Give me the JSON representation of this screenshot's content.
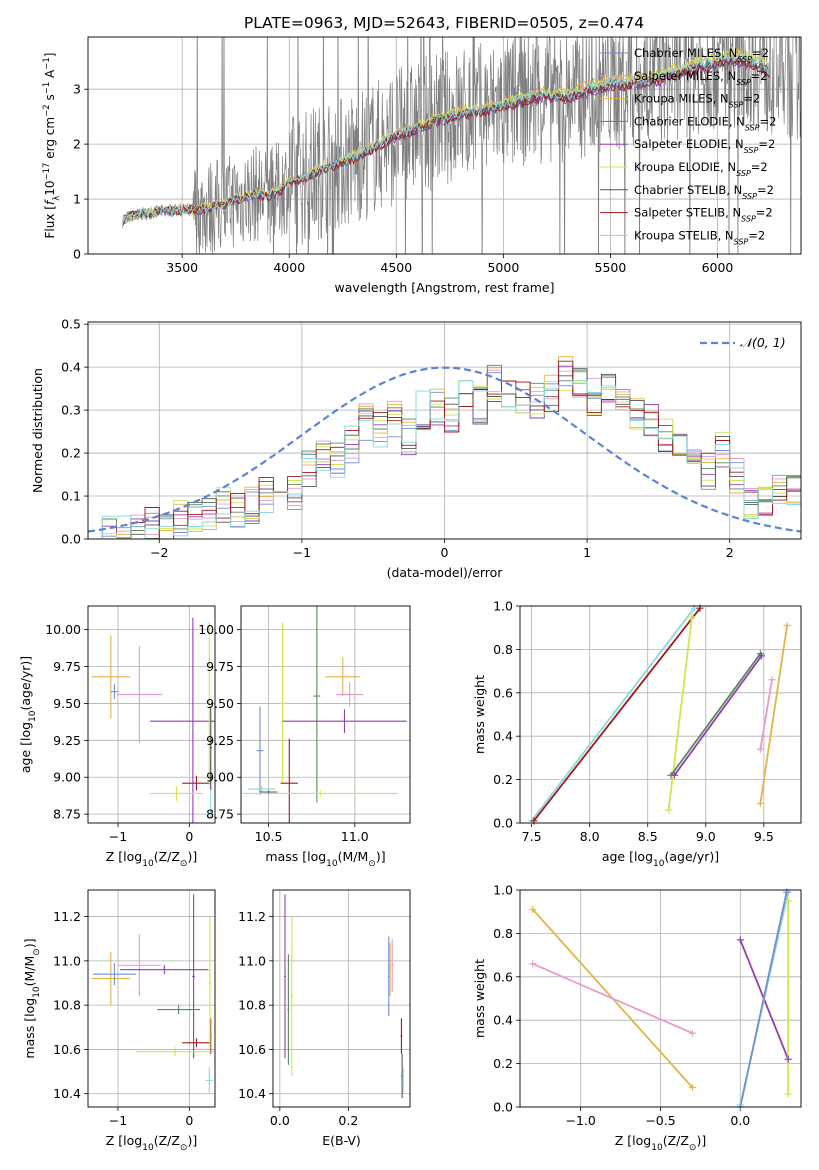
{
  "figure_title": "PLATE=0963, MJD=52643, FIBERID=0505, z=0.474",
  "colors": {
    "Chabrier MILES": "#6f8fd4",
    "Salpeter MILES": "#e79bc9",
    "Kroupa MILES": "#e3b448",
    "Chabrier ELODIE": "#5a8a5a",
    "Salpeter ELODIE": "#8f3fb0",
    "Kroupa ELODIE": "#cfe552",
    "Chabrier STELIB": "#555555",
    "Salpeter STELIB": "#a11a1a",
    "Kroupa STELIB": "#88d8e0",
    "data": "#7f7f7f",
    "orange": "#e0823a",
    "normal": "#5b84d6"
  },
  "legend_entries": [
    {
      "model": "Chabrier MILES",
      "suffix": "=2"
    },
    {
      "model": "Salpeter MILES",
      "suffix": "=2"
    },
    {
      "model": "Kroupa MILES",
      "suffix": "=2"
    },
    {
      "model": "Chabrier ELODIE",
      "suffix": "=2"
    },
    {
      "model": "Salpeter ELODIE",
      "suffix": "=2"
    },
    {
      "model": "Kroupa ELODIE",
      "suffix": "=2"
    },
    {
      "model": "Chabrier STELIB",
      "suffix": "=2"
    },
    {
      "model": "Salpeter STELIB",
      "suffix": "=2"
    },
    {
      "model": "Kroupa STELIB",
      "suffix": "=2"
    }
  ],
  "legend_nssp_main": "N",
  "legend_nssp_sub": "SSP",
  "chart_data": [
    {
      "id": "spectrum",
      "type": "line",
      "title": "PLATE=0963, MJD=52643, FIBERID=0505, z=0.474",
      "xlabel": "wavelength [Angstrom, rest frame]",
      "ylabel": "Flux [f_λ 10^-17 erg cm^-2 s^-1 A^-1]",
      "xlim": [
        3060,
        6390
      ],
      "ylim": [
        0,
        3.95
      ],
      "xticks": [
        3500,
        4000,
        4500,
        5000,
        5500,
        6000
      ],
      "yticks": [
        0,
        1,
        2,
        3
      ],
      "grid": true,
      "legend": "top-right",
      "model_x": [
        3220,
        3250,
        3300,
        3400,
        3500,
        3600,
        3700,
        3750,
        3800,
        3850,
        3900,
        3950,
        4000,
        4100,
        4200,
        4300,
        4400,
        4500,
        4600,
        4700,
        4800,
        4900,
        5000,
        5100,
        5200,
        5300,
        5400,
        5500,
        5600,
        5700,
        5800,
        5900,
        6000,
        6100,
        6200,
        6250
      ],
      "model_y": [
        0.6,
        0.68,
        0.72,
        0.78,
        0.8,
        0.82,
        0.9,
        1.0,
        1.05,
        1.1,
        1.05,
        1.15,
        1.3,
        1.45,
        1.6,
        1.75,
        1.95,
        2.15,
        2.3,
        2.45,
        2.55,
        2.62,
        2.7,
        2.8,
        2.9,
        2.85,
        3.0,
        3.1,
        3.1,
        3.15,
        3.3,
        3.4,
        3.5,
        3.55,
        3.45,
        3.3
      ]
    },
    {
      "id": "residuals",
      "type": "step",
      "xlabel": "(data-model)/error",
      "ylabel": "Normed distribution",
      "xlim": [
        -2.5,
        2.5
      ],
      "ylim": [
        0,
        0.505
      ],
      "xticks": [
        -2,
        -1,
        0,
        1,
        2
      ],
      "yticks": [
        0.0,
        0.1,
        0.2,
        0.3,
        0.4,
        0.5
      ],
      "grid": true,
      "legend": "top-right",
      "normal_label": "𝒩(0, 1)",
      "bins": [
        -2.5,
        -2.4,
        -2.3,
        -2.2,
        -2.1,
        -2.0,
        -1.9,
        -1.8,
        -1.7,
        -1.6,
        -1.5,
        -1.4,
        -1.3,
        -1.2,
        -1.1,
        -1.0,
        -0.9,
        -0.8,
        -0.7,
        -0.6,
        -0.5,
        -0.4,
        -0.3,
        -0.2,
        -0.1,
        0.0,
        0.1,
        0.2,
        0.3,
        0.4,
        0.5,
        0.6,
        0.7,
        0.8,
        0.9,
        1.0,
        1.1,
        1.2,
        1.3,
        1.4,
        1.5,
        1.6,
        1.7,
        1.8,
        1.9,
        2.0,
        2.1,
        2.2,
        2.3,
        2.4,
        2.5
      ],
      "hist_values": [
        0.0,
        0.01,
        0.01,
        0.02,
        0.03,
        0.03,
        0.05,
        0.06,
        0.05,
        0.08,
        0.07,
        0.08,
        0.1,
        0.12,
        0.11,
        0.16,
        0.2,
        0.18,
        0.22,
        0.27,
        0.25,
        0.28,
        0.24,
        0.3,
        0.31,
        0.29,
        0.33,
        0.31,
        0.36,
        0.35,
        0.33,
        0.32,
        0.34,
        0.38,
        0.36,
        0.33,
        0.35,
        0.31,
        0.3,
        0.27,
        0.24,
        0.22,
        0.18,
        0.16,
        0.21,
        0.15,
        0.09,
        0.1,
        0.12,
        0.11
      ]
    },
    {
      "id": "age_vs_Z",
      "type": "errorbar",
      "xlabel_parts": [
        "Z [log",
        "10",
        "(Z/Z",
        "⊙",
        ")]"
      ],
      "ylabel_parts": [
        "age  [log",
        "10",
        "(age/yr)]"
      ],
      "xlim": [
        -1.42,
        0.36
      ],
      "ylim": [
        8.69,
        10.16
      ],
      "xticks": [
        -1,
        0
      ],
      "yticks": [
        8.75,
        9.0,
        9.25,
        9.5,
        9.75,
        10.0
      ],
      "points": [
        {
          "m": "Kroupa MILES",
          "x": -1.1,
          "xe": 0.27,
          "y": 9.68,
          "ye": 0.28
        },
        {
          "m": "Salpeter MILES",
          "x": -0.7,
          "xe": 0.32,
          "y": 9.56,
          "ye": 0.33
        },
        {
          "m": "Chabrier MILES",
          "x": -1.05,
          "xe": 0.05,
          "y": 9.58,
          "ye": 0.05
        },
        {
          "m": "Salpeter ELODIE",
          "x": 0.05,
          "xe": 0.6,
          "y": 9.38,
          "ye": 0.7
        },
        {
          "m": "Salpeter STELIB",
          "x": 0.1,
          "xe": 0.2,
          "y": 8.96,
          "ye": 0.05
        },
        {
          "m": "Kroupa ELODIE",
          "x": -0.18,
          "xe": 0.37,
          "y": 8.89,
          "ye": 0.05
        },
        {
          "m": "Kroupa STELIB",
          "x": 0.3,
          "xe": 0.02,
          "y": 8.92,
          "ye": 0.2
        },
        {
          "m": "Chabrier STELIB",
          "x": 0.3,
          "xe": 0.02,
          "y": 9.2,
          "ye": 0.28
        },
        {
          "m": "Kroupa ELODIE",
          "x": 0.28,
          "xe": 0.02,
          "y": 9.5,
          "ye": 0.55
        }
      ]
    },
    {
      "id": "age_vs_mass",
      "type": "errorbar",
      "xlabel_parts": [
        "mass [log",
        "10",
        "(M/M",
        "⊙",
        ")]"
      ],
      "xlim": [
        10.34,
        11.32
      ],
      "ylim": [
        8.69,
        10.16
      ],
      "xticks": [
        10.5,
        11.0
      ],
      "yticks": [
        8.75,
        9.0,
        9.25,
        9.5,
        9.75,
        10.0
      ],
      "points": [
        {
          "m": "Kroupa ELODIE",
          "x": 10.58,
          "xe": 0.02,
          "y": 9.5,
          "ye": 0.55
        },
        {
          "m": "Chabrier ELODIE",
          "x": 10.78,
          "xe": 0.02,
          "y": 9.55,
          "ye": 0.72
        },
        {
          "m": "Salpeter ELODIE",
          "x": 10.94,
          "xe": 0.36,
          "y": 9.38,
          "ye": 0.08
        },
        {
          "m": "Kroupa MILES",
          "x": 10.93,
          "xe": 0.1,
          "y": 9.68,
          "ye": 0.13
        },
        {
          "m": "Salpeter MILES",
          "x": 10.97,
          "xe": 0.08,
          "y": 9.56,
          "ye": 0.08
        },
        {
          "m": "Salpeter STELIB",
          "x": 10.62,
          "xe": 0.05,
          "y": 8.96,
          "ye": 0.3
        },
        {
          "m": "Chabrier MILES",
          "x": 10.45,
          "xe": 0.02,
          "y": 9.18,
          "ye": 0.3
        },
        {
          "m": "Kroupa STELIB",
          "x": 10.46,
          "xe": 0.08,
          "y": 8.92,
          "ye": 0.02
        },
        {
          "m": "Kroupa ELODIE",
          "x": 10.8,
          "xe": 0.45,
          "y": 8.89,
          "ye": 0.02
        },
        {
          "m": "Chabrier STELIB",
          "x": 10.5,
          "xe": 0.05,
          "y": 8.9,
          "ye": 0.01
        }
      ]
    },
    {
      "id": "weight_vs_age",
      "type": "line",
      "xlabel_parts": [
        "age  [log",
        "10",
        "(age/yr)]"
      ],
      "ylabel": "mass weight",
      "xlim": [
        7.4,
        9.82
      ],
      "ylim": [
        0,
        1.0
      ],
      "xticks": [
        7.5,
        8.0,
        8.5,
        9.0,
        9.5
      ],
      "yticks": [
        0.0,
        0.2,
        0.4,
        0.6,
        0.8,
        1.0
      ],
      "series": [
        {
          "m": "Kroupa STELIB",
          "x": [
            7.5,
            8.9
          ],
          "y": [
            0.01,
            0.99
          ]
        },
        {
          "m": "Salpeter STELIB",
          "x": [
            7.52,
            8.95
          ],
          "y": [
            0.01,
            0.99
          ]
        },
        {
          "m": "Kroupa ELODIE",
          "x": [
            8.68,
            8.88
          ],
          "y": [
            0.06,
            0.95
          ]
        },
        {
          "m": "Chabrier ELODIE",
          "x": [
            8.7,
            9.47
          ],
          "y": [
            0.22,
            0.78
          ]
        },
        {
          "m": "Salpeter ELODIE",
          "x": [
            8.73,
            9.48
          ],
          "y": [
            0.22,
            0.77
          ]
        },
        {
          "m": "Salpeter MILES",
          "x": [
            9.47,
            9.57
          ],
          "y": [
            0.34,
            0.66
          ]
        },
        {
          "m": "Kroupa MILES",
          "x": [
            9.47,
            9.7
          ],
          "y": [
            0.09,
            0.91
          ]
        }
      ]
    },
    {
      "id": "mass_vs_Z",
      "type": "errorbar",
      "xlabel_parts": [
        "Z [log",
        "10",
        "(Z/Z",
        "⊙",
        ")]"
      ],
      "ylabel_parts": [
        "mass [log",
        "10",
        "(M/M",
        "⊙",
        ")]"
      ],
      "xlim": [
        -1.42,
        0.36
      ],
      "ylim": [
        10.34,
        11.32
      ],
      "xticks": [
        -1,
        0
      ],
      "yticks": [
        10.4,
        10.6,
        10.8,
        11.0,
        11.2
      ],
      "points": [
        {
          "m": "Kroupa MILES",
          "x": -1.1,
          "xe": 0.27,
          "y": 10.92,
          "ye": 0.12
        },
        {
          "m": "Chabrier MILES",
          "x": -1.05,
          "xe": 0.3,
          "y": 10.94,
          "ye": 0.05
        },
        {
          "m": "Salpeter MILES",
          "x": -0.7,
          "xe": 0.3,
          "y": 10.98,
          "ye": 0.14
        },
        {
          "m": "Salpeter ELODIE",
          "x": -0.35,
          "xe": 0.62,
          "y": 10.96,
          "ye": 0.02
        },
        {
          "m": "Salpeter ELODIE",
          "x": 0.06,
          "xe": 0.02,
          "y": 10.93,
          "ye": 0.37
        },
        {
          "m": "Chabrier ELODIE",
          "x": -0.15,
          "xe": 0.3,
          "y": 10.78,
          "ye": 0.02
        },
        {
          "m": "Salpeter STELIB",
          "x": 0.1,
          "xe": 0.2,
          "y": 10.63,
          "ye": 0.02
        },
        {
          "m": "Salpeter STELIB",
          "x": 0.3,
          "xe": 0.01,
          "y": 10.66,
          "ye": 0.08
        },
        {
          "m": "Kroupa ELODIE",
          "x": -0.2,
          "xe": 0.55,
          "y": 10.59,
          "ye": 0.02
        },
        {
          "m": "Kroupa ELODIE",
          "x": 0.29,
          "xe": 0.02,
          "y": 10.9,
          "ye": 0.3
        },
        {
          "m": "Kroupa STELIB",
          "x": 0.28,
          "xe": 0.05,
          "y": 10.46,
          "ye": 0.06
        }
      ]
    },
    {
      "id": "mass_vs_ebv",
      "type": "errorbar",
      "xlabel": "E(B-V)",
      "xlim": [
        -0.02,
        0.38
      ],
      "ylim": [
        10.34,
        11.32
      ],
      "xticks": [
        0.0,
        0.2
      ],
      "yticks": [
        10.4,
        10.6,
        10.8,
        11.0,
        11.2
      ],
      "points": [
        {
          "m": "Salpeter ELODIE",
          "x": 0.015,
          "xe": 0.003,
          "y": 10.93,
          "ye": 0.37
        },
        {
          "m": "Chabrier ELODIE",
          "x": 0.025,
          "xe": 0.003,
          "y": 10.78,
          "ye": 0.25
        },
        {
          "m": "Kroupa ELODIE",
          "x": 0.035,
          "xe": 0.003,
          "y": 10.84,
          "ye": 0.36
        },
        {
          "m": "Chabrier MILES",
          "x": 0.318,
          "xe": 0.003,
          "y": 10.93,
          "ye": 0.18
        },
        {
          "m": "Kroupa MILES",
          "x": 0.322,
          "xe": 0.003,
          "y": 10.96,
          "ye": 0.12
        },
        {
          "m": "Salpeter MILES",
          "x": 0.328,
          "xe": 0.003,
          "y": 10.98,
          "ye": 0.12
        },
        {
          "m": "Salpeter STELIB",
          "x": 0.355,
          "xe": 0.003,
          "y": 10.66,
          "ye": 0.08
        },
        {
          "m": "Chabrier STELIB",
          "x": 0.357,
          "xe": 0.003,
          "y": 10.48,
          "ye": 0.1
        },
        {
          "m": "Kroupa STELIB",
          "x": 0.36,
          "xe": 0.003,
          "y": 10.46,
          "ye": 0.06
        }
      ]
    },
    {
      "id": "weight_vs_Z",
      "type": "line",
      "xlabel_parts": [
        "Z [log",
        "10",
        "(Z/Z",
        "⊙",
        ")]"
      ],
      "ylabel": "mass weight",
      "xlim": [
        -1.38,
        0.38
      ],
      "ylim": [
        0,
        1.0
      ],
      "xticks": [
        -1.0,
        -0.5,
        0.0
      ],
      "yticks": [
        0.0,
        0.2,
        0.4,
        0.6,
        0.8,
        1.0
      ],
      "series": [
        {
          "m": "Kroupa MILES",
          "x": [
            -1.3,
            -0.3
          ],
          "y": [
            0.91,
            0.09
          ]
        },
        {
          "m": "Salpeter MILES",
          "x": [
            -1.3,
            -0.3
          ],
          "y": [
            0.66,
            0.34
          ]
        },
        {
          "m": "Salpeter ELODIE",
          "x": [
            0.0,
            0.3
          ],
          "y": [
            0.77,
            0.22
          ]
        },
        {
          "m": "Kroupa STELIB",
          "x": [
            0.0,
            0.3
          ],
          "y": [
            0.01,
            0.99
          ]
        },
        {
          "m": "Chabrier MILES",
          "x": [
            0.0,
            0.29
          ],
          "y": [
            0.0,
            0.99
          ]
        },
        {
          "m": "Kroupa ELODIE",
          "x": [
            0.3,
            0.3
          ],
          "y": [
            0.06,
            0.95
          ]
        }
      ]
    }
  ]
}
